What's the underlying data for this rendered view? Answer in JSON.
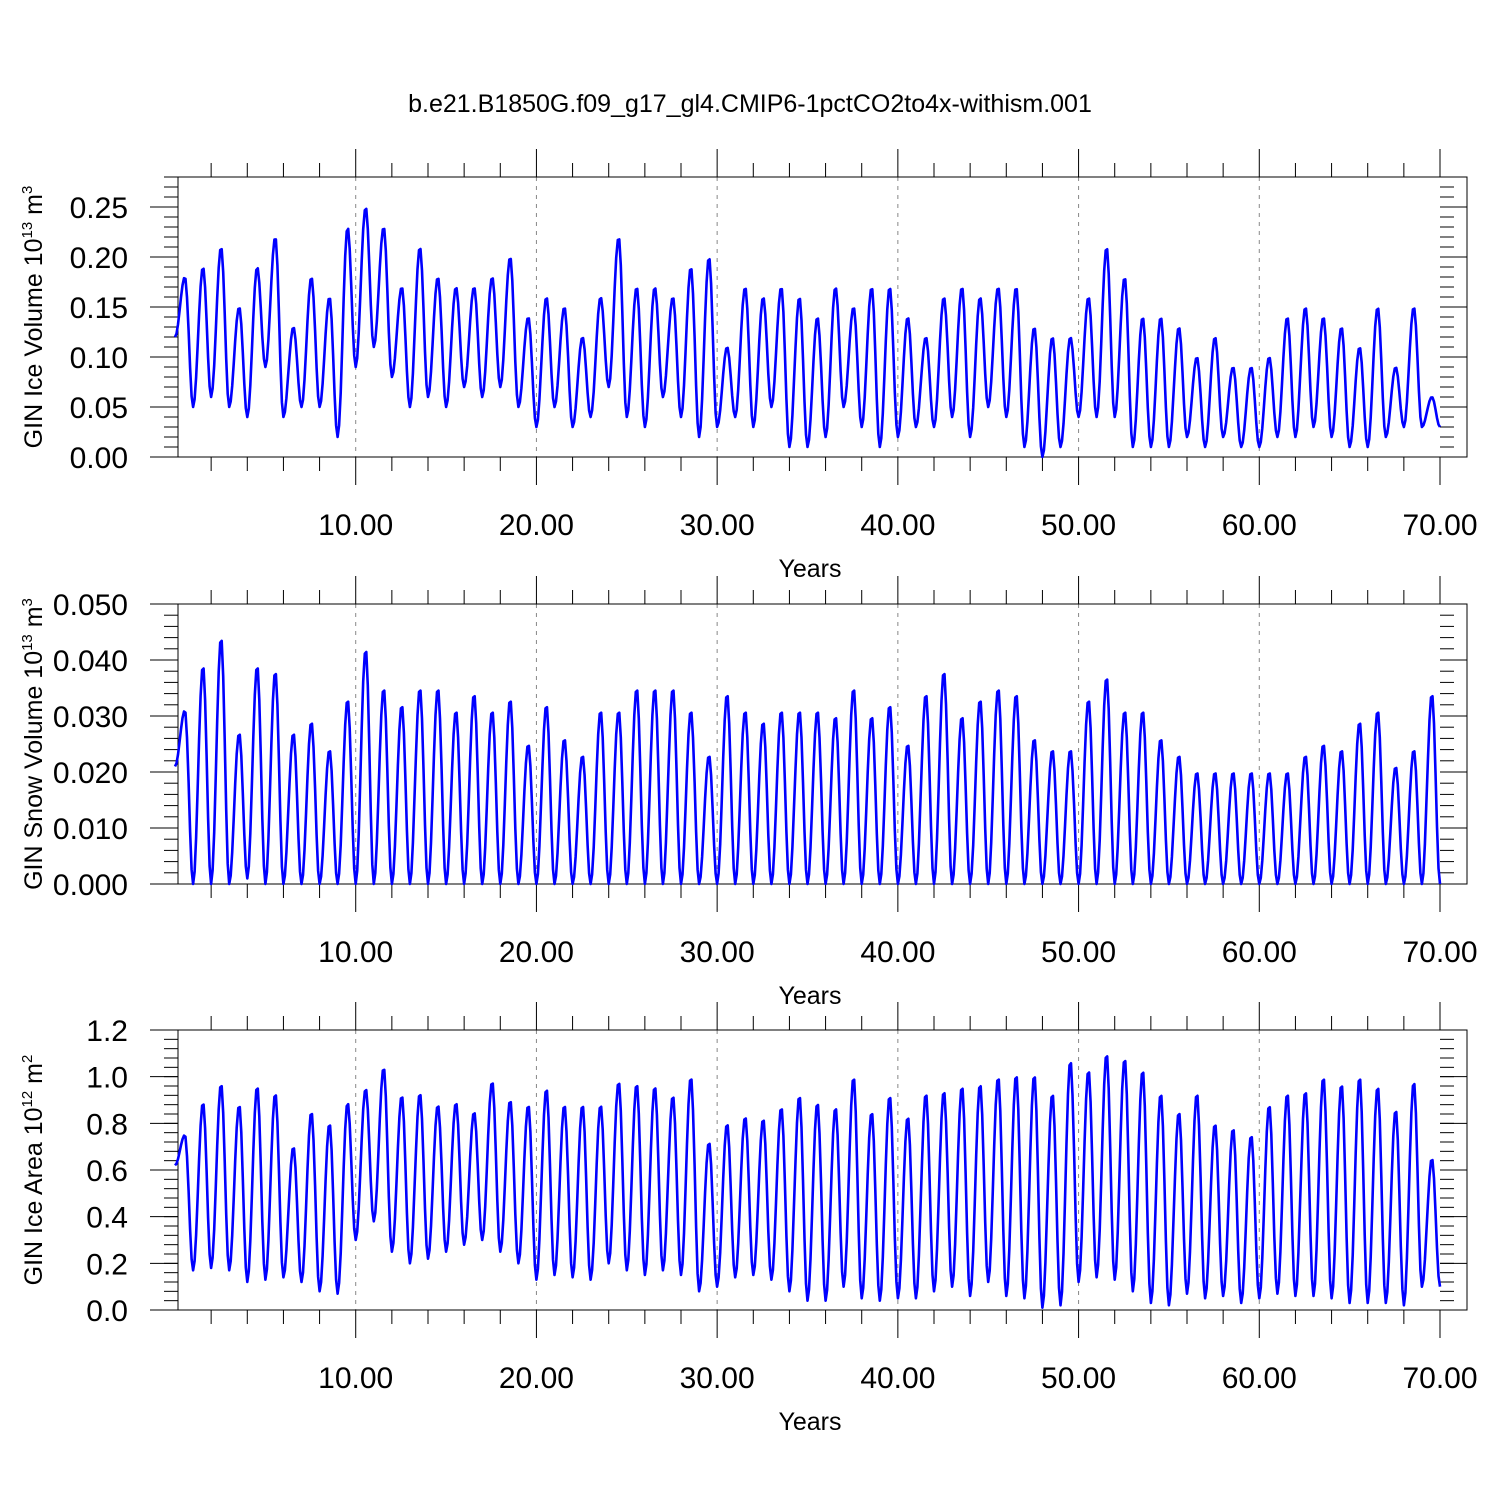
{
  "title": "b.e21.B1850G.f09_g17_gl4.CMIP6-1pctCO2to4x-withism.001",
  "colors": {
    "series": "#0000ff",
    "axes": "#000000",
    "grid": "#888888"
  },
  "chart_data": [
    {
      "type": "line",
      "ylabel": {
        "text": "GIN Ice Volume 10",
        "sup": "13",
        "unit": " m",
        "unit_sup": "3"
      },
      "xlabel": "Years",
      "xlim": [
        0,
        70
      ],
      "ylim": [
        0,
        0.28
      ],
      "xticks": [
        10,
        20,
        30,
        40,
        50,
        60,
        70
      ],
      "xtick_labels": [
        "10.00",
        "20.00",
        "30.00",
        "40.00",
        "50.00",
        "60.00",
        "70.00"
      ],
      "yticks": [
        0,
        0.05,
        0.1,
        0.15,
        0.2,
        0.25
      ],
      "ytick_labels": [
        "0.00",
        "0.05",
        "0.10",
        "0.15",
        "0.20",
        "0.25"
      ],
      "grid": "dashed vertical at each 10 years",
      "series": [
        {
          "peaks": [
            0.18,
            0.19,
            0.21,
            0.15,
            0.19,
            0.22,
            0.13,
            0.18,
            0.16,
            0.23,
            0.25,
            0.23,
            0.17,
            0.21,
            0.18,
            0.17,
            0.17,
            0.18,
            0.2,
            0.14,
            0.16,
            0.15,
            0.12,
            0.16,
            0.22,
            0.17,
            0.17,
            0.16,
            0.19,
            0.2,
            0.11,
            0.17,
            0.16,
            0.17,
            0.16,
            0.14,
            0.17,
            0.15,
            0.17,
            0.17,
            0.14,
            0.12,
            0.16,
            0.17,
            0.16,
            0.17,
            0.17,
            0.13,
            0.12,
            0.12,
            0.16,
            0.21,
            0.18,
            0.14,
            0.14,
            0.13,
            0.1,
            0.12,
            0.09,
            0.09,
            0.1,
            0.14,
            0.15,
            0.14,
            0.13,
            0.11,
            0.15,
            0.09,
            0.15,
            0.06
          ],
          "troughs": [
            0.12,
            0.05,
            0.06,
            0.05,
            0.04,
            0.09,
            0.04,
            0.05,
            0.05,
            0.02,
            0.09,
            0.11,
            0.08,
            0.05,
            0.06,
            0.05,
            0.07,
            0.06,
            0.07,
            0.05,
            0.03,
            0.05,
            0.03,
            0.04,
            0.07,
            0.04,
            0.03,
            0.06,
            0.04,
            0.02,
            0.03,
            0.04,
            0.03,
            0.05,
            0.01,
            0.01,
            0.02,
            0.05,
            0.03,
            0.01,
            0.02,
            0.03,
            0.03,
            0.04,
            0.02,
            0.05,
            0.04,
            0.01,
            0.0,
            0.01,
            0.04,
            0.04,
            0.04,
            0.01,
            0.01,
            0.01,
            0.02,
            0.01,
            0.02,
            0.01,
            0.01,
            0.02,
            0.02,
            0.03,
            0.02,
            0.01,
            0.01,
            0.02,
            0.03,
            0.03
          ]
        }
      ]
    },
    {
      "type": "line",
      "ylabel": {
        "text": "GIN Snow Volume 10",
        "sup": "13",
        "unit": " m",
        "unit_sup": "3"
      },
      "xlabel": "Years",
      "xlim": [
        0,
        70
      ],
      "ylim": [
        0,
        0.05
      ],
      "xticks": [
        10,
        20,
        30,
        40,
        50,
        60,
        70
      ],
      "xtick_labels": [
        "10.00",
        "20.00",
        "30.00",
        "40.00",
        "50.00",
        "60.00",
        "70.00"
      ],
      "yticks": [
        0,
        0.01,
        0.02,
        0.03,
        0.04,
        0.05
      ],
      "ytick_labels": [
        "0.000",
        "0.010",
        "0.020",
        "0.030",
        "0.040",
        "0.050"
      ],
      "grid": "dashed vertical at each 10 years",
      "series": [
        {
          "peaks": [
            0.031,
            0.039,
            0.044,
            0.027,
            0.039,
            0.038,
            0.027,
            0.029,
            0.024,
            0.033,
            0.042,
            0.035,
            0.032,
            0.035,
            0.035,
            0.031,
            0.034,
            0.031,
            0.033,
            0.025,
            0.032,
            0.026,
            0.023,
            0.031,
            0.031,
            0.035,
            0.035,
            0.035,
            0.031,
            0.023,
            0.034,
            0.031,
            0.029,
            0.031,
            0.031,
            0.031,
            0.03,
            0.035,
            0.03,
            0.032,
            0.025,
            0.034,
            0.038,
            0.03,
            0.033,
            0.035,
            0.034,
            0.026,
            0.024,
            0.024,
            0.033,
            0.037,
            0.031,
            0.031,
            0.026,
            0.023,
            0.02,
            0.02,
            0.02,
            0.02,
            0.02,
            0.02,
            0.023,
            0.025,
            0.024,
            0.029,
            0.031,
            0.021,
            0.024,
            0.034
          ],
          "troughs": [
            0.021,
            0.0,
            0.0,
            0.0,
            0.001,
            0.0,
            0.0,
            0.0,
            0.0,
            0.0,
            0.0,
            0.0,
            0.0,
            0.0,
            0.0,
            0.0,
            0.0,
            0.0,
            0.0,
            0.0,
            0.0,
            0.0,
            0.0,
            0.0,
            0.0,
            0.0,
            0.0,
            0.0,
            0.0,
            0.0,
            0.0,
            0.0,
            0.0,
            0.0,
            0.0,
            0.0,
            0.0,
            0.0,
            0.0,
            0.0,
            0.0,
            0.0,
            0.0,
            0.0,
            0.0,
            0.0,
            0.0,
            0.0,
            0.0,
            0.0,
            0.0,
            0.0,
            0.0,
            0.0,
            0.0,
            0.0,
            0.0,
            0.0,
            0.0,
            0.0,
            0.0,
            0.0,
            0.0,
            0.0,
            0.0,
            0.0,
            0.0,
            0.0,
            0.0,
            0.0
          ]
        }
      ]
    },
    {
      "type": "line",
      "ylabel": {
        "text": "GIN Ice Area 10",
        "sup": "12",
        "unit": " m",
        "unit_sup": "2"
      },
      "xlabel": "Years",
      "xlim": [
        0,
        70
      ],
      "ylim": [
        0,
        1.2
      ],
      "xticks": [
        10,
        20,
        30,
        40,
        50,
        60,
        70
      ],
      "xtick_labels": [
        "10.00",
        "20.00",
        "30.00",
        "40.00",
        "50.00",
        "60.00",
        "70.00"
      ],
      "yticks": [
        0,
        0.2,
        0.4,
        0.6,
        0.8,
        1.0,
        1.2
      ],
      "ytick_labels": [
        "0.0",
        "0.2",
        "0.4",
        "0.6",
        "0.8",
        "1.0",
        "1.2"
      ],
      "grid": "dashed vertical at each 10 years",
      "series": [
        {
          "peaks": [
            0.75,
            0.89,
            0.97,
            0.88,
            0.96,
            0.93,
            0.7,
            0.85,
            0.8,
            0.89,
            0.95,
            1.04,
            0.92,
            0.93,
            0.88,
            0.89,
            0.85,
            0.98,
            0.9,
            0.88,
            0.95,
            0.88,
            0.88,
            0.88,
            0.98,
            0.97,
            0.96,
            0.92,
            1.0,
            0.72,
            0.8,
            0.83,
            0.82,
            0.87,
            0.92,
            0.89,
            0.87,
            1.0,
            0.85,
            0.92,
            0.83,
            0.93,
            0.94,
            0.96,
            0.97,
            1.0,
            1.01,
            1.01,
            0.93,
            1.07,
            1.03,
            1.1,
            1.08,
            1.03,
            0.93,
            0.85,
            0.93,
            0.8,
            0.78,
            0.75,
            0.88,
            0.93,
            0.94,
            1.0,
            0.97,
            1.0,
            0.96,
            0.86,
            0.98,
            0.65
          ],
          "troughs": [
            0.62,
            0.17,
            0.18,
            0.17,
            0.12,
            0.13,
            0.14,
            0.12,
            0.08,
            0.07,
            0.3,
            0.38,
            0.25,
            0.2,
            0.22,
            0.25,
            0.28,
            0.3,
            0.25,
            0.2,
            0.13,
            0.15,
            0.14,
            0.13,
            0.2,
            0.17,
            0.15,
            0.17,
            0.15,
            0.08,
            0.1,
            0.14,
            0.15,
            0.13,
            0.08,
            0.04,
            0.04,
            0.1,
            0.05,
            0.04,
            0.05,
            0.05,
            0.08,
            0.1,
            0.06,
            0.12,
            0.06,
            0.05,
            0.01,
            0.02,
            0.12,
            0.14,
            0.13,
            0.08,
            0.03,
            0.02,
            0.07,
            0.05,
            0.06,
            0.03,
            0.05,
            0.07,
            0.06,
            0.06,
            0.05,
            0.03,
            0.03,
            0.03,
            0.02,
            0.1
          ]
        }
      ]
    }
  ]
}
